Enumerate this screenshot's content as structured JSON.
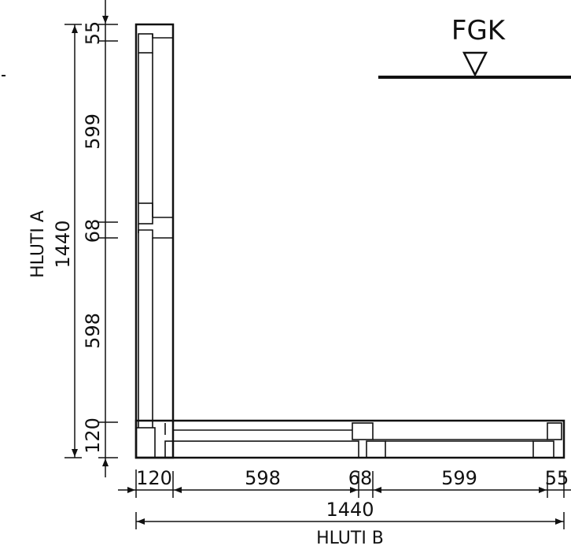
{
  "level_marker": {
    "label": "FGK"
  },
  "part_a": {
    "title": "HLUTI A",
    "total": "1440",
    "segments": [
      "55",
      "599",
      "68",
      "598",
      "120"
    ]
  },
  "part_b": {
    "title": "HLUTI B",
    "total": "1440",
    "segments": [
      "120",
      "598",
      "68",
      "599",
      "55"
    ]
  }
}
